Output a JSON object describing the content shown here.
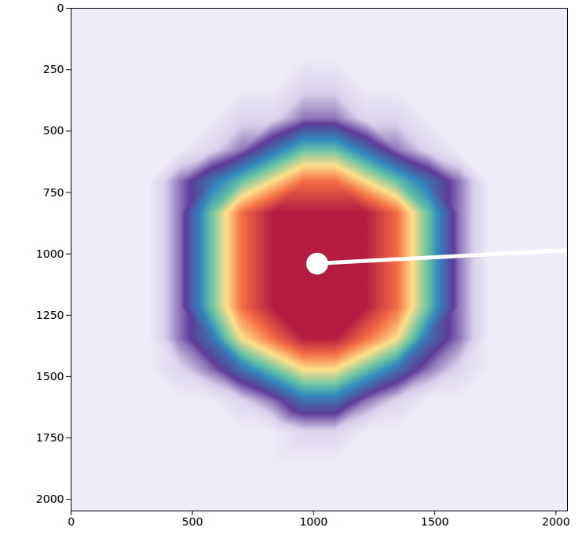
{
  "chart_data": {
    "type": "heatmap",
    "xlim": [
      -0.5,
      2047.5
    ],
    "ylim": [
      2047.5,
      -0.5
    ],
    "xticks": [
      0,
      500,
      1000,
      1500,
      2000
    ],
    "yticks": [
      0,
      250,
      500,
      750,
      1000,
      1250,
      1500,
      1750,
      2000
    ],
    "grid": false,
    "zlim": [
      0,
      1
    ],
    "x": [
      64,
      192,
      320,
      448,
      576,
      704,
      832,
      960,
      1088,
      1216,
      1344,
      1472,
      1600,
      1728,
      1856,
      1984
    ],
    "y": [
      64,
      192,
      320,
      448,
      576,
      704,
      832,
      960,
      1088,
      1216,
      1344,
      1472,
      1600,
      1728,
      1856,
      1984
    ],
    "values": [
      [
        0.03,
        0.03,
        0.03,
        0.03,
        0.03,
        0.03,
        0.03,
        0.03,
        0.03,
        0.03,
        0.03,
        0.03,
        0.03,
        0.03,
        0.03,
        0.03
      ],
      [
        0.03,
        0.03,
        0.03,
        0.03,
        0.03,
        0.03,
        0.03,
        0.03,
        0.03,
        0.03,
        0.03,
        0.03,
        0.03,
        0.03,
        0.03,
        0.03
      ],
      [
        0.03,
        0.03,
        0.03,
        0.03,
        0.03,
        0.03,
        0.03,
        0.1,
        0.1,
        0.03,
        0.03,
        0.03,
        0.03,
        0.03,
        0.03,
        0.03
      ],
      [
        0.03,
        0.03,
        0.03,
        0.03,
        0.03,
        0.1,
        0.1,
        0.2,
        0.2,
        0.1,
        0.1,
        0.03,
        0.03,
        0.03,
        0.03,
        0.03
      ],
      [
        0.03,
        0.03,
        0.03,
        0.03,
        0.1,
        0.2,
        0.35,
        0.5,
        0.5,
        0.35,
        0.2,
        0.1,
        0.03,
        0.03,
        0.03,
        0.03
      ],
      [
        0.03,
        0.03,
        0.03,
        0.2,
        0.35,
        0.5,
        0.65,
        0.8,
        0.8,
        0.65,
        0.5,
        0.35,
        0.2,
        0.03,
        0.03,
        0.03
      ],
      [
        0.03,
        0.03,
        0.03,
        0.2,
        0.5,
        0.8,
        0.95,
        0.95,
        0.95,
        0.95,
        0.8,
        0.5,
        0.2,
        0.03,
        0.03,
        0.03
      ],
      [
        0.03,
        0.03,
        0.03,
        0.2,
        0.5,
        0.8,
        0.95,
        0.95,
        0.95,
        0.95,
        0.8,
        0.5,
        0.2,
        0.03,
        0.03,
        0.03
      ],
      [
        0.03,
        0.03,
        0.03,
        0.2,
        0.5,
        0.8,
        0.95,
        0.95,
        0.95,
        0.95,
        0.8,
        0.5,
        0.2,
        0.03,
        0.03,
        0.03
      ],
      [
        0.03,
        0.03,
        0.03,
        0.2,
        0.5,
        0.8,
        0.95,
        0.95,
        0.95,
        0.95,
        0.8,
        0.5,
        0.2,
        0.03,
        0.03,
        0.03
      ],
      [
        0.03,
        0.03,
        0.03,
        0.2,
        0.35,
        0.65,
        0.8,
        0.95,
        0.95,
        0.8,
        0.65,
        0.35,
        0.2,
        0.03,
        0.03,
        0.03
      ],
      [
        0.03,
        0.03,
        0.03,
        0.1,
        0.2,
        0.35,
        0.5,
        0.65,
        0.65,
        0.5,
        0.35,
        0.2,
        0.1,
        0.03,
        0.03,
        0.03
      ],
      [
        0.03,
        0.03,
        0.03,
        0.03,
        0.03,
        0.1,
        0.2,
        0.35,
        0.35,
        0.2,
        0.1,
        0.03,
        0.03,
        0.03,
        0.03,
        0.03
      ],
      [
        0.03,
        0.03,
        0.03,
        0.03,
        0.03,
        0.03,
        0.03,
        0.1,
        0.1,
        0.03,
        0.03,
        0.03,
        0.03,
        0.03,
        0.03,
        0.03
      ],
      [
        0.03,
        0.03,
        0.03,
        0.03,
        0.03,
        0.03,
        0.03,
        0.03,
        0.03,
        0.03,
        0.03,
        0.03,
        0.03,
        0.03,
        0.03,
        0.03
      ],
      [
        0.03,
        0.03,
        0.03,
        0.03,
        0.03,
        0.03,
        0.03,
        0.03,
        0.03,
        0.03,
        0.03,
        0.03,
        0.03,
        0.03,
        0.03,
        0.03
      ]
    ],
    "beam_stop": {
      "x": 1015,
      "y": 1040,
      "r": 45
    },
    "beam_stop_arm": {
      "x": [
        1040,
        2047.5
      ],
      "y": [
        1038,
        985
      ]
    }
  }
}
